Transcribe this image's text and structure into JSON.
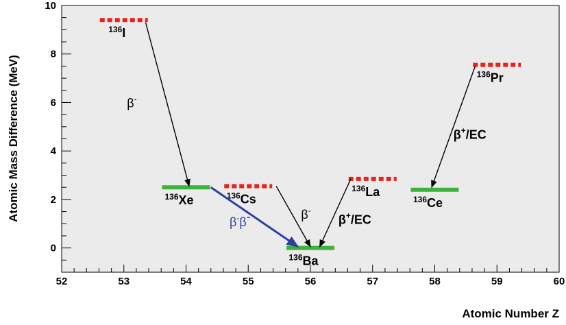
{
  "chart_data": {
    "type": "diagram",
    "xlabel": "Atomic Number Z",
    "ylabel": "Atomic Mass Difference (MeV)",
    "xlim": [
      52,
      60
    ],
    "ylim": [
      -1,
      10
    ],
    "x_ticks": [
      "52",
      "53",
      "54",
      "55",
      "56",
      "57",
      "58",
      "59",
      "60"
    ],
    "y_ticks": [
      "0",
      "2",
      "4",
      "6",
      "8",
      "10"
    ],
    "colors": {
      "stable": "#3cb43c",
      "unstable": "#e8231e",
      "double_beta": "#2f3fa0",
      "background": "#ebebeb"
    },
    "levels": [
      {
        "mass": "136",
        "element": "I",
        "z": 53,
        "energy": 9.4,
        "stable": false
      },
      {
        "mass": "136",
        "element": "Xe",
        "z": 54,
        "energy": 2.5,
        "stable": true
      },
      {
        "mass": "136",
        "element": "Cs",
        "z": 55,
        "energy": 2.55,
        "stable": false
      },
      {
        "mass": "136",
        "element": "Ba",
        "z": 56,
        "energy": 0.0,
        "stable": true
      },
      {
        "mass": "136",
        "element": "La",
        "z": 57,
        "energy": 2.85,
        "stable": false
      },
      {
        "mass": "136",
        "element": "Ce",
        "z": 58,
        "energy": 2.4,
        "stable": true
      },
      {
        "mass": "136",
        "element": "Pr",
        "z": 59,
        "energy": 7.55,
        "stable": false
      }
    ],
    "transitions": [
      {
        "from": [
          53.35,
          9.3
        ],
        "to": [
          54.05,
          2.55
        ],
        "label_main": "β",
        "label_sup": "-",
        "label_pos": [
          53.05,
          5.8
        ],
        "kind": "single"
      },
      {
        "from": [
          55.45,
          2.55
        ],
        "to": [
          56.0,
          0.05
        ],
        "label_main": "β",
        "label_sup": "-",
        "label_pos": [
          55.85,
          1.2
        ],
        "kind": "single"
      },
      {
        "from": [
          56.65,
          2.85
        ],
        "to": [
          56.15,
          0.05
        ],
        "label_main": "β",
        "label_sup": "+",
        "label_suffix": "/EC",
        "label_pos": [
          56.45,
          1.0
        ],
        "kind": "single"
      },
      {
        "from": [
          58.65,
          7.5
        ],
        "to": [
          57.95,
          2.5
        ],
        "label_main": "β",
        "label_sup": "+",
        "label_suffix": "/EC",
        "label_pos": [
          58.3,
          4.5
        ],
        "kind": "single"
      },
      {
        "from": [
          54.4,
          2.5
        ],
        "to": [
          55.8,
          0.05
        ],
        "label_main": "β",
        "label_sup": "-",
        "label_main2": "β",
        "label_sup2": "-",
        "label_pos": [
          54.7,
          0.9
        ],
        "kind": "double"
      }
    ]
  }
}
